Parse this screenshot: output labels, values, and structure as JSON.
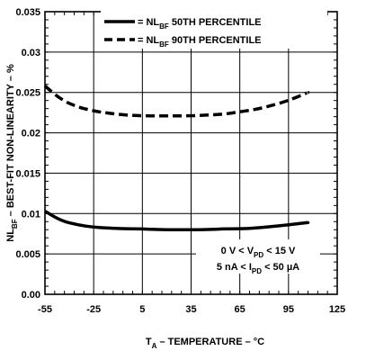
{
  "chart_data": {
    "type": "line",
    "xlabel": {
      "prefix": "T",
      "sub": "A",
      "suffix": " – TEMPERATURE – °C"
    },
    "ylabel": {
      "prefix": "NL",
      "sub": "BF",
      "suffix": " – BEST-FIT NON-LINEARITY – %"
    },
    "xlim": [
      -55,
      125
    ],
    "ylim": [
      0,
      0.035
    ],
    "xticks": [
      -55,
      -25,
      5,
      35,
      65,
      95,
      125
    ],
    "xtick_labels": [
      "-55",
      "-25",
      "5",
      "35",
      "65",
      "95",
      "125"
    ],
    "yticks": [
      0,
      0.005,
      0.01,
      0.015,
      0.02,
      0.025,
      0.03,
      0.035
    ],
    "ytick_labels": [
      "0.00",
      "0.005",
      "0.01",
      "0.015",
      "0.02",
      "0.025",
      "0.03",
      "0.035"
    ],
    "grid": true,
    "legend_position": "top-center",
    "series": [
      {
        "name": "= NLBF 50TH PERCENTILE",
        "legend_parts": {
          "prefix": "= NL",
          "sub": "BF",
          "suffix": " 50TH PERCENTILE"
        },
        "style": "solid",
        "x": [
          -55,
          -45,
          -35,
          -25,
          -15,
          -5,
          5,
          15,
          25,
          35,
          45,
          55,
          65,
          75,
          85,
          95,
          107
        ],
        "y": [
          0.0103,
          0.0091,
          0.0086,
          0.0083,
          0.0082,
          0.0081,
          0.0081,
          0.008,
          0.008,
          0.008,
          0.008,
          0.0081,
          0.0081,
          0.0082,
          0.0084,
          0.0086,
          0.0089
        ]
      },
      {
        "name": "= NLBF 90TH PERCENTILE",
        "legend_parts": {
          "prefix": "= NL",
          "sub": "BF",
          "suffix": " 90TH  PERCENTILE"
        },
        "style": "dashed",
        "x": [
          -55,
          -45,
          -35,
          -25,
          -15,
          -5,
          5,
          15,
          25,
          35,
          45,
          55,
          65,
          75,
          85,
          95,
          107
        ],
        "y": [
          0.0258,
          0.0241,
          0.0232,
          0.0227,
          0.0224,
          0.0222,
          0.0221,
          0.0221,
          0.0221,
          0.0221,
          0.0222,
          0.0223,
          0.0226,
          0.0229,
          0.0234,
          0.024,
          0.025
        ]
      }
    ],
    "annotations": [
      {
        "prefix": "0 V < V",
        "sub": "PD",
        "suffix": " < 15 V"
      },
      {
        "prefix": "5 nA < I",
        "sub": "PD",
        "suffix": " < 50 µA"
      }
    ]
  }
}
